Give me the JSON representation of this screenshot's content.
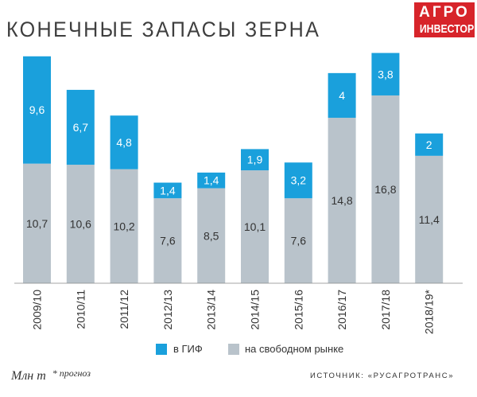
{
  "title": "КОНЕЧНЫЕ ЗАПАСЫ ЗЕРНА",
  "logo": {
    "line1": "АГРО",
    "line2": "ИНВЕСТОР"
  },
  "colors": {
    "gif": "#1aa0dc",
    "free": "#b9c3cb",
    "bg": "#ffffff",
    "text": "#333333",
    "logo": "#d7242a"
  },
  "chart_data": {
    "type": "bar",
    "stacked": true,
    "title": "КОНЕЧНЫЕ ЗАПАСЫ ЗЕРНА",
    "unit": "млн т",
    "categories": [
      "2009/10",
      "2010/11",
      "2011/12",
      "2012/13",
      "2013/14",
      "2014/15",
      "2015/16",
      "2016/17",
      "2017/18",
      "2018/19*"
    ],
    "series": [
      {
        "name": "на свободном рынке",
        "values": [
          10.7,
          10.6,
          10.2,
          7.6,
          8.5,
          10.1,
          7.6,
          14.8,
          16.8,
          11.4
        ],
        "labels": [
          "10,7",
          "10,6",
          "10,2",
          "7,6",
          "8,5",
          "10,1",
          "7,6",
          "14,8",
          "16,8",
          "11,4"
        ]
      },
      {
        "name": "в ГИФ",
        "values": [
          9.6,
          6.7,
          4.8,
          1.4,
          1.4,
          1.9,
          3.2,
          4,
          3.8,
          2
        ],
        "labels": [
          "9,6",
          "6,7",
          "4,8",
          "1,4",
          "1,4",
          "1,9",
          "3,2",
          "4",
          "3,8",
          "2"
        ]
      }
    ],
    "ylim": [
      0,
      21
    ]
  },
  "legend": {
    "gif": "в ГИФ",
    "free": "на свободном рынке"
  },
  "footnote": {
    "unit": "Млн т",
    "forecast": "* прогноз"
  },
  "source": "ИСТОЧНИК: «РУСАГРОТРАНС»"
}
